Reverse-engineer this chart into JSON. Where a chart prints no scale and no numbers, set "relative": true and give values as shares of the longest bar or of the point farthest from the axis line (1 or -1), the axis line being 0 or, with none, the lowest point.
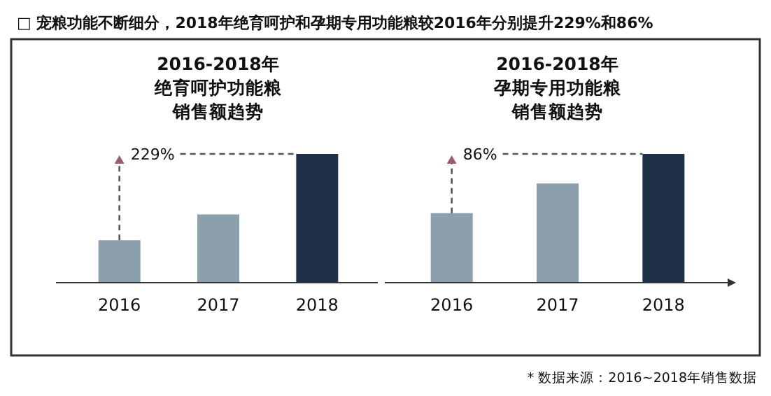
{
  "chart_data": [
    {
      "type": "bar",
      "relative": true,
      "title": "2016-2018年绝育呵护功能粮销售额趋势",
      "categories": [
        "2016",
        "2017",
        "2018"
      ],
      "values": [
        0.33,
        0.53,
        1
      ],
      "colors": [
        "#8c9fac",
        "#8c9fac",
        "#1e3148"
      ],
      "annotations": [
        "□ 宠粮功能不断细分，2018年绝育呵护和孕期专用功能粮较2016年分别提升229%和86%",
        "229%"
      ]
    },
    {
      "type": "bar",
      "relative": true,
      "title": "2016-2018年孕期专用功能粮销售额趋势",
      "categories": [
        "2016",
        "2017",
        "2018"
      ],
      "values": [
        0.54,
        0.77,
        1
      ],
      "colors": [
        "#8c9fac",
        "#8c9fac",
        "#1e3148"
      ],
      "annotations": [
        "86%",
        "* 数据来源：2016~2018年销售数据"
      ]
    }
  ]
}
